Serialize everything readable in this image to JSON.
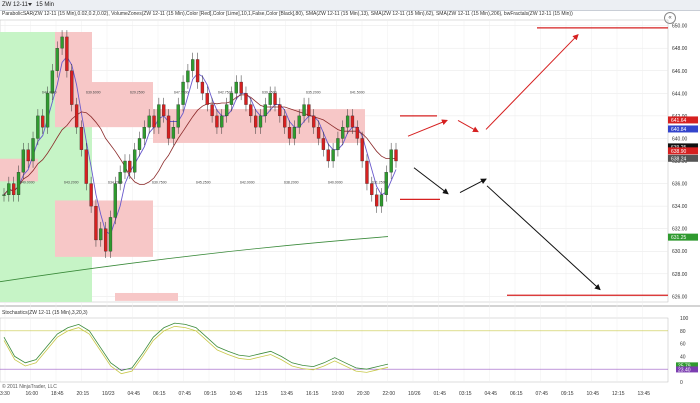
{
  "toolbar": {
    "instrument": "ZW 12-11",
    "timeframe": "15 Min"
  },
  "indicators_text": "ParabolicSAR(ZW 12-11 (15 Min),0.02,0.2,0.02), VolumeZones(ZW 12-11 (15 Min),Color [Red],Color [Lime],10,1,False,Color [Black],80), SMA(ZW 12-11 (15 Min),13), SMA(ZW 12-11 (15 Min),62), SMA(ZW 12-11 (15 Min),206), bwFractals(ZW 12-11 (15 Min))",
  "stochastics_text": "Stochastics(ZW 12-11 (15 Min),3,20,3)",
  "copyright": "© 2011 NinjaTrader, LLC",
  "collapse_symbol": "«",
  "colors": {
    "up": "#2f9a2f",
    "down": "#d62020",
    "sma13": "#6a5acd",
    "sma62": "#8b2a2a",
    "sma206": "#3a8a3a",
    "zone_red": "#f7c7c7",
    "zone_green": "#c6f4c6",
    "forecast": "#d62020",
    "forecast_black": "#111111"
  },
  "price_axis": {
    "labels": [
      "650.00",
      "648.00",
      "646.00",
      "644.00",
      "642.00",
      "640.00",
      "638.00",
      "636.00",
      "634.00",
      "632.00",
      "630.00",
      "628.00",
      "626.00"
    ]
  },
  "price_badges": [
    {
      "text": "641.64",
      "color": "#d62020"
    },
    {
      "text": "640.84",
      "color": "#3344cc"
    },
    {
      "text": "639.25",
      "color": "#111111"
    },
    {
      "text": "638.90",
      "color": "#d62020"
    },
    {
      "text": "638.24",
      "color": "#555555"
    },
    {
      "text": "631.25",
      "color": "#2f9a2f"
    }
  ],
  "stoch_axis": {
    "labels": [
      "100",
      "80",
      "60",
      "40",
      "20",
      "0"
    ]
  },
  "stoch_badges": [
    {
      "text": "25.79",
      "color": "#2f9a2f"
    },
    {
      "text": "23.40",
      "color": "#7b3db0"
    }
  ],
  "time_axis": {
    "labels": [
      "3:30",
      "16:00",
      "18:45",
      "20:15",
      "10/23",
      "04:45",
      "06:15",
      "07:45",
      "09:15",
      "10:45",
      "12:15",
      "13:45",
      "16:15",
      "19:00",
      "20:30",
      "22:00",
      "10/26",
      "01:45",
      "03:15",
      "04:45",
      "06:15",
      "07:45",
      "09:15",
      "10:45",
      "12:15",
      "13:45"
    ]
  },
  "candle_labels": [
    "649.0000",
    "644.4000",
    "643.2000",
    "639.6000",
    "634.7000",
    "629.2500",
    "630.7500",
    "647.7500",
    "645.2500",
    "642.7500",
    "642.0000",
    "639.2500",
    "638.2000",
    "635.2000",
    "640.0000",
    "641.5000",
    "631.2500"
  ]
}
